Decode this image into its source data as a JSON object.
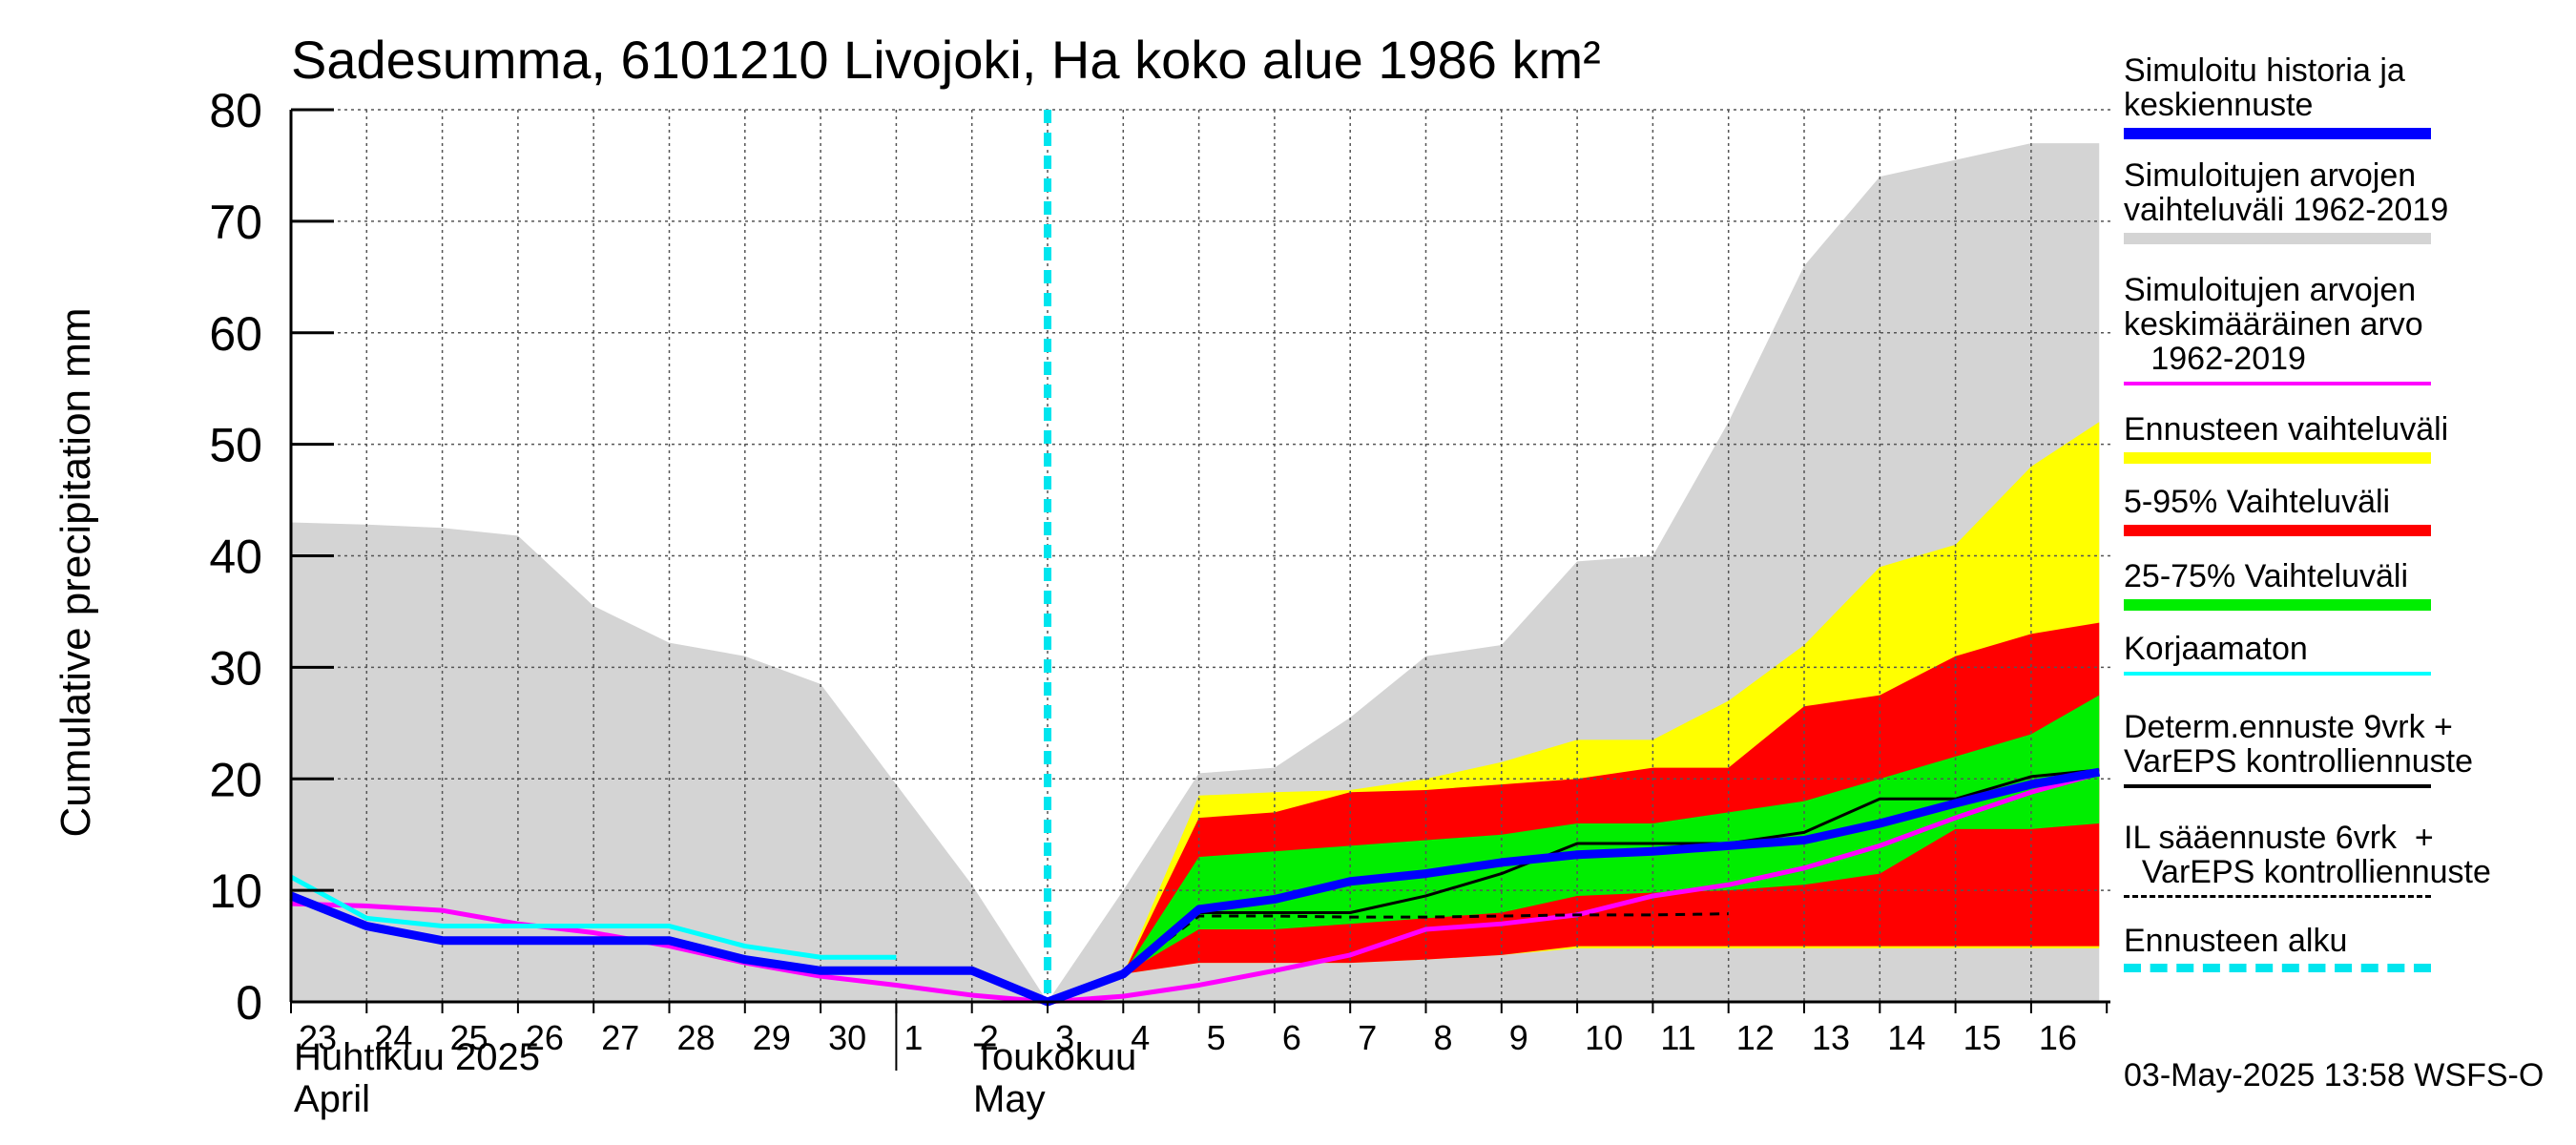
{
  "chart_data": {
    "type": "area",
    "title": "Sadesumma, 6101210 Livojoki, Ha koko alue 1986 km²",
    "ylabel": "Cumulative precipitation   mm",
    "xlabel": "",
    "ylim": [
      0,
      80
    ],
    "yticks": [
      0,
      10,
      20,
      30,
      40,
      50,
      60,
      70,
      80
    ],
    "grid": true,
    "legend_position": "right",
    "x_tick_labels": [
      "23",
      "24",
      "25",
      "26",
      "27",
      "28",
      "29",
      "30",
      "1",
      "2",
      "3",
      "4",
      "5",
      "6",
      "7",
      "8",
      "9",
      "10",
      "11",
      "12",
      "13",
      "14",
      "15",
      "16"
    ],
    "x_month_labels": [
      {
        "line1": "Huhtikuu  2025",
        "line2": "April"
      },
      {
        "line1": "Toukokuu",
        "line2": "May"
      }
    ],
    "forecast_start_x": 10,
    "series": [
      {
        "name": "Simuloitujen arvojen vaihteluväli 1962-2019",
        "kind": "band",
        "color": "#d4d4d4",
        "x": [
          0,
          1,
          2,
          3,
          4,
          5,
          6,
          7,
          8,
          9,
          10,
          11,
          12,
          13,
          14,
          15,
          16,
          17,
          18,
          19,
          20,
          21,
          22,
          23,
          23.9
        ],
        "upper": [
          43,
          42.8,
          42.5,
          41.8,
          35.5,
          32.2,
          31,
          28.5,
          19.5,
          10.5,
          0,
          10,
          20.5,
          21,
          25.5,
          31,
          32,
          39.5,
          40,
          52,
          66,
          74,
          75.5,
          77,
          77
        ],
        "lower": [
          0,
          0,
          0,
          0,
          0,
          0,
          0,
          0,
          0,
          0,
          0,
          0,
          0,
          0,
          0,
          0,
          0,
          0,
          0,
          0,
          0,
          0,
          0,
          0,
          0
        ]
      },
      {
        "name": "Ennusteen vaihteluväli",
        "kind": "band",
        "color": "#ffff00",
        "x": [
          10,
          11,
          12,
          13,
          14,
          15,
          16,
          17,
          18,
          19,
          20,
          21,
          22,
          23,
          23.9
        ],
        "upper": [
          0,
          2.5,
          18.5,
          18.8,
          19,
          20,
          21.5,
          23.5,
          23.5,
          27,
          32,
          39,
          41,
          48,
          52
        ],
        "lower": [
          0,
          2.5,
          3.5,
          3.5,
          3.5,
          3.8,
          4.2,
          4.8,
          4.8,
          4.8,
          4.8,
          4.8,
          4.8,
          4.8,
          4.8
        ]
      },
      {
        "name": "5-95% Vaihteluväli",
        "kind": "band",
        "color": "#ff0000",
        "x": [
          10,
          11,
          12,
          13,
          14,
          15,
          16,
          17,
          18,
          19,
          20,
          21,
          22,
          23,
          23.9
        ],
        "upper": [
          0,
          2.5,
          16.5,
          17,
          18.8,
          19,
          19.5,
          20,
          21,
          21,
          26.5,
          27.5,
          31,
          33,
          34
        ],
        "lower": [
          0,
          2.5,
          3.5,
          3.5,
          3.5,
          3.8,
          4.2,
          5,
          5,
          5,
          5,
          5,
          5,
          5,
          5
        ]
      },
      {
        "name": "25-75% Vaihteluväli",
        "kind": "band",
        "color": "#00ee00",
        "x": [
          10,
          11,
          12,
          13,
          14,
          15,
          16,
          17,
          18,
          19,
          20,
          21,
          22,
          23,
          23.9
        ],
        "upper": [
          0,
          2.5,
          13,
          13.5,
          14,
          14.5,
          15,
          16,
          16,
          17,
          18,
          20,
          22,
          24,
          27.5
        ],
        "lower": [
          0,
          2.5,
          6.5,
          6.5,
          7,
          7.5,
          8,
          9.5,
          9.8,
          10,
          10.5,
          11.5,
          15.5,
          15.5,
          16
        ]
      },
      {
        "name": "Simuloitujen arvojen keskimääräinen arvo 1962-2019",
        "kind": "line",
        "color": "#ff00ff",
        "width": 5,
        "x": [
          0,
          1,
          2,
          3,
          4,
          5,
          6,
          7,
          8,
          9,
          10,
          11,
          12,
          13,
          14,
          15,
          16,
          17,
          18,
          19,
          20,
          21,
          22,
          23,
          23.9
        ],
        "y": [
          8.8,
          8.6,
          8.2,
          7,
          6.2,
          5,
          3.5,
          2.3,
          1.5,
          0.6,
          0,
          0.5,
          1.5,
          2.8,
          4.2,
          6.5,
          7,
          7.8,
          9.5,
          10.5,
          12,
          14,
          16.5,
          18.8,
          20.5
        ]
      },
      {
        "name": "Korjaamaton",
        "kind": "line",
        "color": "#00ffff",
        "width": 5,
        "x": [
          0,
          1,
          2,
          3,
          4,
          5,
          6,
          7,
          8
        ],
        "y": [
          11.2,
          7.5,
          6.8,
          6.8,
          6.8,
          6.8,
          5,
          4,
          4
        ]
      },
      {
        "name": "Determ.ennuste 9vrk + VarEPS kontrolliennuste",
        "kind": "line",
        "color": "#000000",
        "width": 3,
        "x": [
          10,
          11,
          12,
          13,
          14,
          15,
          16,
          17,
          18,
          19,
          20,
          21,
          22,
          23,
          23.9
        ],
        "y": [
          0,
          2.5,
          8,
          8,
          8,
          9.5,
          11.5,
          14.2,
          14.2,
          14.2,
          15.2,
          18.2,
          18.2,
          20.2,
          20.8
        ]
      },
      {
        "name": "IL sääennuste 6vrk + VarEPS kontrolliennuste",
        "kind": "line",
        "color": "#000000",
        "width": 3,
        "dashed": true,
        "x": [
          10,
          11,
          12,
          13,
          14,
          15,
          16,
          17,
          18,
          19
        ],
        "y": [
          0,
          2.5,
          7.7,
          7.7,
          7.6,
          7.6,
          7.7,
          7.8,
          7.8,
          7.9
        ]
      },
      {
        "name": "Simuloitu historia ja keskiennuste",
        "kind": "line",
        "color": "#0000ff",
        "width": 9,
        "x": [
          0,
          1,
          2,
          3,
          4,
          5,
          6,
          7,
          8,
          9,
          10,
          11,
          12,
          13,
          14,
          15,
          16,
          17,
          18,
          19,
          20,
          21,
          22,
          23,
          23.9
        ],
        "y": [
          9.5,
          6.8,
          5.5,
          5.5,
          5.5,
          5.5,
          3.8,
          2.8,
          2.8,
          2.8,
          0,
          2.5,
          8.3,
          9.2,
          10.8,
          11.5,
          12.5,
          13.2,
          13.5,
          14,
          14.5,
          16,
          17.8,
          19.5,
          20.6
        ]
      },
      {
        "name": "Ennusteen alku",
        "kind": "vline",
        "color": "#00e5ee",
        "width": 8,
        "dashed": true,
        "x": 10
      }
    ]
  },
  "legend": {
    "items": [
      {
        "text": "Simuloitu historia ja\nkeskiennuste",
        "color": "#0000ff",
        "kind": "thick"
      },
      {
        "text": "Simuloitujen arvojen\nvaihteluväli 1962-2019",
        "color": "#d4d4d4",
        "kind": "thick"
      },
      {
        "text": "Simuloitujen arvojen\nkeskimääräinen arvo\n   1962-2019",
        "color": "#ff00ff",
        "kind": "thin"
      },
      {
        "text": "Ennusteen vaihteluväli",
        "color": "#ffff00",
        "kind": "thick"
      },
      {
        "text": "5-95% Vaihteluväli",
        "color": "#ff0000",
        "kind": "thick"
      },
      {
        "text": "25-75% Vaihteluväli",
        "color": "#00ee00",
        "kind": "thick"
      },
      {
        "text": "Korjaamaton",
        "color": "#00ffff",
        "kind": "thin"
      },
      {
        "text": "Determ.ennuste 9vrk +\nVarEPS kontrolliennuste",
        "color": "#000000",
        "kind": "thin"
      },
      {
        "text": "IL sääennuste 6vrk  +\n  VarEPS kontrolliennuste",
        "color": "#000000",
        "kind": "dashed"
      },
      {
        "text": "Ennusteen alku",
        "color": "#00e5ee",
        "kind": "thickdashed"
      }
    ]
  },
  "footer": {
    "timestamp": "03-May-2025 13:58 WSFS-O"
  }
}
